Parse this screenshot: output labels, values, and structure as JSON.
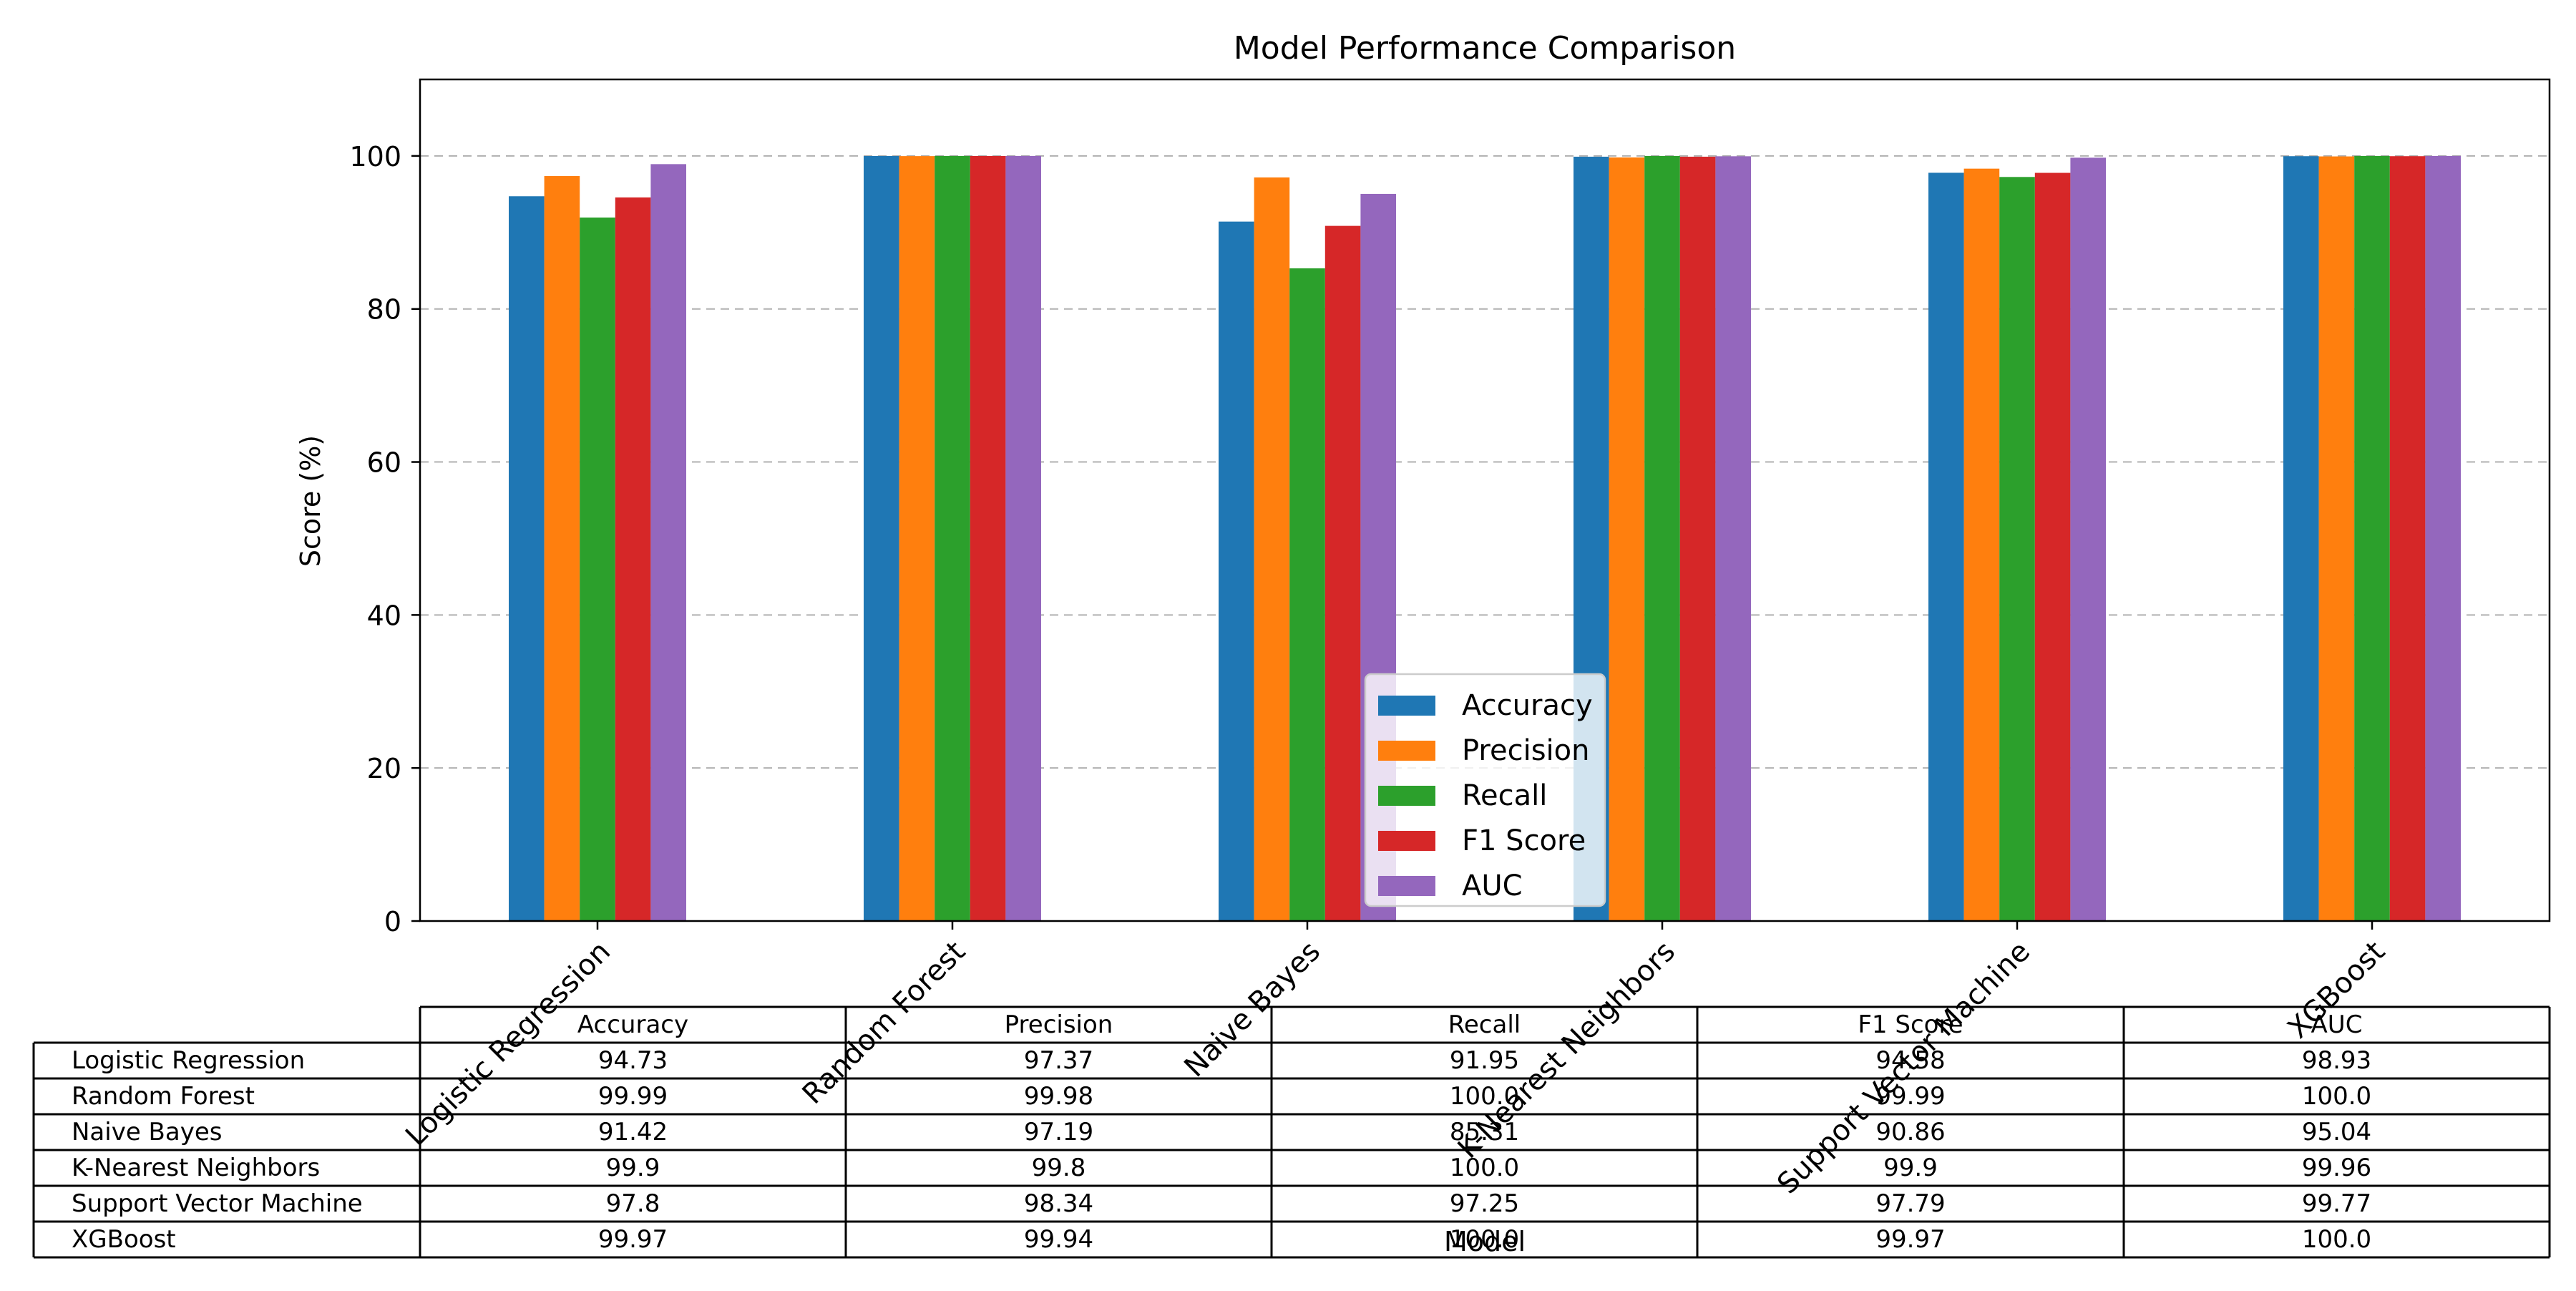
{
  "chart_data": {
    "type": "bar",
    "title": "Model Performance Comparison",
    "xlabel": "Model",
    "ylabel": "Score (%)",
    "ylim": [
      0,
      110
    ],
    "yticks": [
      0,
      20,
      40,
      60,
      80,
      100
    ],
    "grid": "y dashed",
    "legend_position": "bottom-center",
    "categories": [
      "Logistic Regression",
      "Random Forest",
      "Naive Bayes",
      "K-Nearest Neighbors",
      "Support Vector Machine",
      "XGBoost"
    ],
    "series": [
      {
        "name": "Accuracy",
        "color": "#1f77b4",
        "values": [
          94.73,
          99.99,
          91.42,
          99.9,
          97.8,
          99.97
        ]
      },
      {
        "name": "Precision",
        "color": "#ff7f0e",
        "values": [
          97.37,
          99.98,
          97.19,
          99.8,
          98.34,
          99.94
        ]
      },
      {
        "name": "Recall",
        "color": "#2ca02c",
        "values": [
          91.95,
          100.0,
          85.31,
          100.0,
          97.25,
          100.0
        ]
      },
      {
        "name": "F1 Score",
        "color": "#d62728",
        "values": [
          94.58,
          99.99,
          90.86,
          99.9,
          97.79,
          99.97
        ]
      },
      {
        "name": "AUC",
        "color": "#9467bd",
        "values": [
          98.93,
          100.0,
          95.04,
          99.96,
          99.77,
          100.0
        ]
      }
    ],
    "table": {
      "columns": [
        "Accuracy",
        "Precision",
        "Recall",
        "F1 Score",
        "AUC"
      ],
      "rows": [
        {
          "label": "Logistic Regression",
          "cells": [
            "94.73",
            "97.37",
            "91.95",
            "94.58",
            "98.93"
          ]
        },
        {
          "label": "Random Forest",
          "cells": [
            "99.99",
            "99.98",
            "100.0",
            "99.99",
            "100.0"
          ]
        },
        {
          "label": "Naive Bayes",
          "cells": [
            "91.42",
            "97.19",
            "85.31",
            "90.86",
            "95.04"
          ]
        },
        {
          "label": "K-Nearest Neighbors",
          "cells": [
            "99.9",
            "99.8",
            "100.0",
            "99.9",
            "99.96"
          ]
        },
        {
          "label": "Support Vector Machine",
          "cells": [
            "97.8",
            "98.34",
            "97.25",
            "97.79",
            "99.77"
          ]
        },
        {
          "label": "XGBoost",
          "cells": [
            "99.97",
            "99.94",
            "100.0",
            "99.97",
            "100.0"
          ]
        }
      ]
    }
  }
}
